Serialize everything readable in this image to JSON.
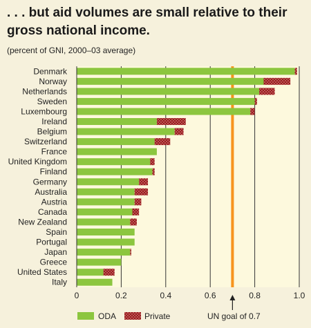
{
  "title": ". . . but aid volumes are small relative to their gross national income.",
  "subtitle": "(percent of GNI, 2000–03 average)",
  "colors": {
    "background": "#f6f1dc",
    "plot_background": "#fdf9dd",
    "oda": "#8cc63f",
    "private": "#9a1b1e",
    "private_dots": "#e8b0a6",
    "goal_line": "#f7941d",
    "grid": "#333333"
  },
  "chart_data": {
    "type": "bar",
    "orientation": "horizontal",
    "stacked": true,
    "categories": [
      "Denmark",
      "Norway",
      "Netherlands",
      "Sweden",
      "Luxembourg",
      "Ireland",
      "Belgium",
      "Switzerland",
      "France",
      "United Kingdom",
      "Finland",
      "Germany",
      "Australia",
      "Austria",
      "Canada",
      "New Zealand",
      "Spain",
      "Portugal",
      "Japan",
      "Greece",
      "United States",
      "Italy"
    ],
    "series": [
      {
        "name": "ODA",
        "values": [
          0.98,
          0.84,
          0.82,
          0.8,
          0.78,
          0.36,
          0.44,
          0.35,
          0.36,
          0.33,
          0.34,
          0.28,
          0.26,
          0.26,
          0.25,
          0.24,
          0.26,
          0.26,
          0.24,
          0.2,
          0.12,
          0.16
        ]
      },
      {
        "name": "Private",
        "values": [
          0.01,
          0.12,
          0.07,
          0.01,
          0.02,
          0.13,
          0.04,
          0.07,
          0.0,
          0.02,
          0.01,
          0.04,
          0.06,
          0.03,
          0.03,
          0.03,
          0.0,
          0.0,
          0.005,
          0.0,
          0.05,
          0.0
        ]
      }
    ],
    "x_ticks": [
      "0",
      "0.2",
      "0.4",
      "0.6",
      "0.8",
      "1.0"
    ],
    "xlim": [
      0,
      1.0
    ],
    "grid": true,
    "reference_line": {
      "value": 0.7,
      "label": "UN goal of 0.7"
    },
    "legend": {
      "placement": "bottom",
      "items": [
        "ODA",
        "Private"
      ]
    }
  }
}
